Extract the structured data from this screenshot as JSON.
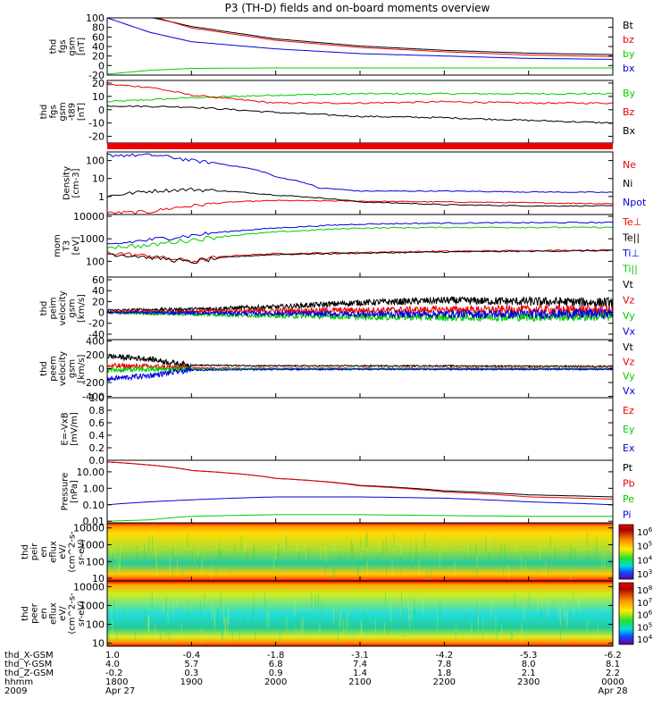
{
  "title": "P3 (TH-D) fields and on-board moments overview",
  "colors": {
    "black": "#000000",
    "red": "#ee0000",
    "green": "#00cc00",
    "blue": "#0000dd"
  },
  "chart_data": [
    {
      "type": "line",
      "panel": "fgs",
      "ylabel": [
        "thd",
        "fgs",
        "gsm",
        "[nT]"
      ],
      "ylim": [
        -20,
        100
      ],
      "y_ticks": [
        "100",
        "80",
        "60",
        "40",
        "20",
        "0",
        "-20"
      ],
      "y_tick_values": [
        100,
        80,
        60,
        40,
        20,
        0,
        -20
      ],
      "series": [
        {
          "name": "Bt",
          "color": "#000000",
          "hours": [
            0.55,
            1,
            2,
            3,
            4,
            5,
            6
          ],
          "values": [
            100,
            82,
            56,
            41,
            32,
            26,
            23
          ]
        },
        {
          "name": "bz",
          "color": "#ee0000",
          "hours": [
            0.6,
            1,
            2,
            3,
            4,
            5,
            6
          ],
          "values": [
            100,
            79,
            53,
            38,
            29,
            22,
            19
          ]
        },
        {
          "name": "by",
          "color": "#00cc00",
          "hours": [
            0,
            0.5,
            1,
            2,
            3,
            4,
            5,
            6
          ],
          "values": [
            -18,
            -10,
            -6,
            -5,
            -5,
            -5,
            -5,
            -5
          ]
        },
        {
          "name": "bx",
          "color": "#0000dd",
          "hours": [
            0,
            0.5,
            1,
            2,
            3,
            4,
            5,
            6
          ],
          "values": [
            100,
            70,
            50,
            35,
            25,
            20,
            15,
            13
          ]
        }
      ]
    },
    {
      "type": "line",
      "panel": "fgs-t89",
      "ylabel": [
        "thd",
        "fgs",
        "gsm",
        "-t89",
        "[nT]"
      ],
      "ylim": [
        -25,
        22
      ],
      "y_ticks": [
        "20",
        "10",
        "0",
        "-10",
        "-20"
      ],
      "y_tick_values": [
        20,
        10,
        0,
        -10,
        -20
      ],
      "series": [
        {
          "name": "By",
          "color": "#00cc00",
          "hours": [
            0,
            1,
            2,
            3,
            4,
            5,
            6
          ],
          "values": [
            6,
            9,
            11,
            12,
            12,
            12,
            12
          ]
        },
        {
          "name": "Bz",
          "color": "#ee0000",
          "hours": [
            0,
            0.5,
            1,
            2,
            3,
            4,
            5,
            6
          ],
          "values": [
            19,
            17,
            11,
            5,
            5,
            6,
            5,
            5
          ]
        },
        {
          "name": "Bx",
          "color": "#000000",
          "hours": [
            0,
            1,
            2,
            3,
            4,
            5,
            6
          ],
          "values": [
            3,
            2,
            -2,
            -5,
            -6,
            -8,
            -10
          ]
        }
      ]
    },
    {
      "type": "line",
      "panel": "density",
      "ylabel": [
        "Density",
        "[cm-3]"
      ],
      "yscale": "log",
      "ylim": [
        0.1,
        300
      ],
      "y_ticks": [
        "100",
        "10",
        "1"
      ],
      "y_tick_values": [
        100,
        10,
        1
      ],
      "series": [
        {
          "name": "Ne",
          "color": "#ee0000",
          "hours": [
            0,
            0.5,
            1,
            1.5,
            2,
            3,
            4,
            5,
            6
          ],
          "values": [
            0.12,
            0.14,
            0.3,
            0.5,
            0.6,
            0.55,
            0.5,
            0.45,
            0.4
          ]
        },
        {
          "name": "Ni",
          "color": "#000000",
          "hours": [
            0,
            0.5,
            1,
            2,
            3,
            4,
            5,
            6
          ],
          "values": [
            1,
            2,
            2.5,
            1.2,
            0.5,
            0.35,
            0.3,
            0.3
          ]
        },
        {
          "name": "Npot",
          "color": "#0000dd",
          "hours": [
            0.55,
            1,
            1.5,
            2,
            2.5,
            3,
            4,
            5,
            6
          ],
          "values": [
            200,
            100,
            50,
            12,
            3,
            2,
            2,
            1.8,
            1.7
          ]
        }
      ]
    },
    {
      "type": "line",
      "panel": "mom-temperature",
      "ylabel": [
        "mom",
        "T3",
        "[eV]"
      ],
      "yscale": "log",
      "ylim": [
        20,
        12000
      ],
      "y_ticks": [
        "10000",
        "1000",
        "100"
      ],
      "y_tick_values": [
        10000,
        1000,
        100
      ],
      "series": [
        {
          "name": "Te⊥",
          "color": "#ee0000",
          "hours": [
            0,
            0.6,
            1,
            1.5,
            2,
            3,
            4,
            5,
            6
          ],
          "values": [
            250,
            150,
            100,
            180,
            220,
            250,
            280,
            300,
            320
          ]
        },
        {
          "name": "Te||",
          "color": "#000000",
          "hours": [
            0,
            0.6,
            1,
            1.5,
            2,
            3,
            4,
            5,
            6
          ],
          "values": [
            220,
            140,
            90,
            160,
            200,
            230,
            260,
            280,
            300
          ]
        },
        {
          "name": "Ti⊥",
          "color": "#0000dd",
          "hours": [
            0,
            0.5,
            1,
            1.5,
            2,
            3,
            4,
            5,
            6
          ],
          "values": [
            500,
            900,
            1400,
            2200,
            3000,
            4500,
            5000,
            5200,
            5300
          ]
        },
        {
          "name": "Ti||",
          "color": "#00cc00",
          "hours": [
            0,
            0.5,
            1,
            1.5,
            2,
            3,
            4,
            5,
            6
          ],
          "values": [
            450,
            500,
            900,
            1400,
            2000,
            3000,
            3200,
            3200,
            3200
          ]
        }
      ]
    },
    {
      "type": "line",
      "panel": "peim-velocity",
      "ylabel": [
        "thd",
        "peim",
        "velocity",
        "gsm",
        "[km/s]"
      ],
      "ylim": [
        -50,
        65
      ],
      "y_ticks": [
        "60",
        "40",
        "20",
        "0",
        "-20",
        "-40"
      ],
      "y_tick_values": [
        60,
        40,
        20,
        0,
        -20,
        -40
      ],
      "series": [
        {
          "name": "Vt",
          "color": "#000000",
          "hours": [
            0,
            1,
            2,
            3,
            4,
            5,
            6
          ],
          "values": [
            4,
            6,
            10,
            18,
            22,
            20,
            18
          ]
        },
        {
          "name": "Vz",
          "color": "#ee0000",
          "hours": [
            0,
            1,
            2,
            3,
            4,
            5,
            6
          ],
          "values": [
            1,
            2,
            3,
            4,
            5,
            5,
            4
          ]
        },
        {
          "name": "Vy",
          "color": "#00cc00",
          "hours": [
            0,
            1,
            2,
            3,
            4,
            5,
            6
          ],
          "values": [
            -1,
            -3,
            -6,
            -8,
            -9,
            -8,
            -7
          ]
        },
        {
          "name": "Vx",
          "color": "#0000dd",
          "hours": [
            0,
            1,
            2,
            3,
            4,
            5,
            6
          ],
          "values": [
            0,
            -1,
            -2,
            -3,
            -3,
            -3,
            -2
          ]
        }
      ]
    },
    {
      "type": "line",
      "panel": "peem-velocity",
      "ylabel": [
        "thd",
        "peem",
        "velocity",
        "gsm",
        "[km/s]"
      ],
      "ylim": [
        -420,
        420
      ],
      "y_ticks": [
        "400",
        "200",
        "0",
        "-200",
        "-400"
      ],
      "y_tick_values": [
        400,
        200,
        0,
        -200,
        -400
      ],
      "series": [
        {
          "name": "Vt",
          "color": "#000000",
          "hours": [
            0,
            0.5,
            0.8,
            1,
            2,
            3,
            4,
            5,
            6
          ],
          "values": [
            180,
            140,
            80,
            50,
            40,
            40,
            40,
            35,
            35
          ]
        },
        {
          "name": "Vz",
          "color": "#ee0000",
          "hours": [
            0,
            0.5,
            1,
            2,
            3,
            4,
            5,
            6
          ],
          "values": [
            40,
            30,
            10,
            5,
            5,
            5,
            5,
            5
          ]
        },
        {
          "name": "Vy",
          "color": "#00cc00",
          "hours": [
            0,
            0.5,
            1,
            2,
            3,
            4,
            5,
            6
          ],
          "values": [
            -20,
            -10,
            -5,
            -2,
            -2,
            -2,
            -2,
            -2
          ]
        },
        {
          "name": "Vx",
          "color": "#0000dd",
          "hours": [
            0,
            0.5,
            0.8,
            1,
            2,
            3,
            4,
            5,
            6
          ],
          "values": [
            -150,
            -100,
            -50,
            -20,
            -10,
            -10,
            -10,
            -10,
            -10
          ]
        }
      ]
    },
    {
      "type": "line",
      "panel": "e-vxb",
      "ylabel": [
        "E=-VxB",
        "[mV/m]"
      ],
      "ylim": [
        0,
        1
      ],
      "y_ticks": [
        "1.0",
        "0.8",
        "0.6",
        "0.4",
        "0.2",
        "0.0"
      ],
      "y_tick_values": [
        1.0,
        0.8,
        0.6,
        0.4,
        0.2,
        0.0
      ],
      "series": [
        {
          "name": "Ez",
          "color": "#ee0000"
        },
        {
          "name": "Ey",
          "color": "#00cc00"
        },
        {
          "name": "Ex",
          "color": "#0000dd"
        }
      ]
    },
    {
      "type": "line",
      "panel": "pressure",
      "ylabel": [
        "Pressure",
        "[nPa]"
      ],
      "yscale": "log",
      "ylim": [
        0.008,
        50
      ],
      "y_ticks": [
        "10.00",
        "1.00",
        "0.10",
        "0.01"
      ],
      "y_tick_values": [
        10,
        1,
        0.1,
        0.01
      ],
      "series": [
        {
          "name": "Pt",
          "color": "#000000",
          "hours": [
            0,
            1,
            2,
            3,
            4,
            5,
            6
          ],
          "values": [
            40,
            12,
            4,
            1.5,
            0.7,
            0.4,
            0.3
          ]
        },
        {
          "name": "Pb",
          "color": "#ee0000",
          "hours": [
            0,
            1,
            2,
            3,
            4,
            5,
            6
          ],
          "values": [
            40,
            12,
            4,
            1.4,
            0.6,
            0.3,
            0.22
          ]
        },
        {
          "name": "Pe",
          "color": "#00cc00",
          "hours": [
            0,
            0.5,
            1,
            2,
            3,
            4,
            5,
            6
          ],
          "values": [
            0.01,
            0.012,
            0.02,
            0.025,
            0.025,
            0.022,
            0.02,
            0.02
          ]
        },
        {
          "name": "Pi",
          "color": "#0000dd",
          "hours": [
            0,
            0.5,
            1,
            2,
            3,
            4,
            5,
            6
          ],
          "values": [
            0.1,
            0.15,
            0.2,
            0.3,
            0.3,
            0.25,
            0.15,
            0.1
          ]
        }
      ]
    },
    {
      "type": "heatmap",
      "panel": "peir-en-eflux",
      "ylabel": [
        "thd",
        "peir",
        "en",
        "eflux",
        "eV/",
        "(cm^2-s-",
        "sr-eV)"
      ],
      "yscale": "log",
      "ylim": [
        7,
        20000
      ],
      "y_ticks": [
        "10000",
        "1000",
        "100",
        "10"
      ],
      "y_tick_values": [
        10000,
        1000,
        100,
        10
      ],
      "colorbar_ticks": [
        "10^6",
        "10^5",
        "10^4",
        "10^3"
      ]
    },
    {
      "type": "heatmap",
      "panel": "peer-en-eflux",
      "ylabel": [
        "thd",
        "peer",
        "en",
        "eflux",
        "eV/",
        "(cm^2-s-",
        "sr-eV)"
      ],
      "yscale": "log",
      "ylim": [
        7,
        20000
      ],
      "y_ticks": [
        "10000",
        "1000",
        "100",
        "10"
      ],
      "y_tick_values": [
        10000,
        1000,
        100,
        10
      ],
      "colorbar_ticks": [
        "10^8",
        "10^7",
        "10^6",
        "10^5",
        "10^4"
      ]
    }
  ],
  "xaxis": {
    "row_labels": [
      "thd_X-GSM",
      "thd_Y-GSM",
      "thd_Z-GSM",
      "hhmm",
      "2009"
    ],
    "columns": [
      [
        "1.0",
        "4.0",
        "-0.2",
        "1800",
        "Apr 27"
      ],
      [
        "-0.4",
        "5.7",
        "0.3",
        "1900",
        ""
      ],
      [
        "-1.8",
        "6.8",
        "0.9",
        "2000",
        ""
      ],
      [
        "-3.1",
        "7.4",
        "1.4",
        "2100",
        ""
      ],
      [
        "-4.2",
        "7.8",
        "1.8",
        "2200",
        ""
      ],
      [
        "-5.3",
        "8.0",
        "2.1",
        "2300",
        ""
      ],
      [
        "-6.2",
        "8.1",
        "2.2",
        "0000",
        "Apr 28"
      ]
    ]
  }
}
